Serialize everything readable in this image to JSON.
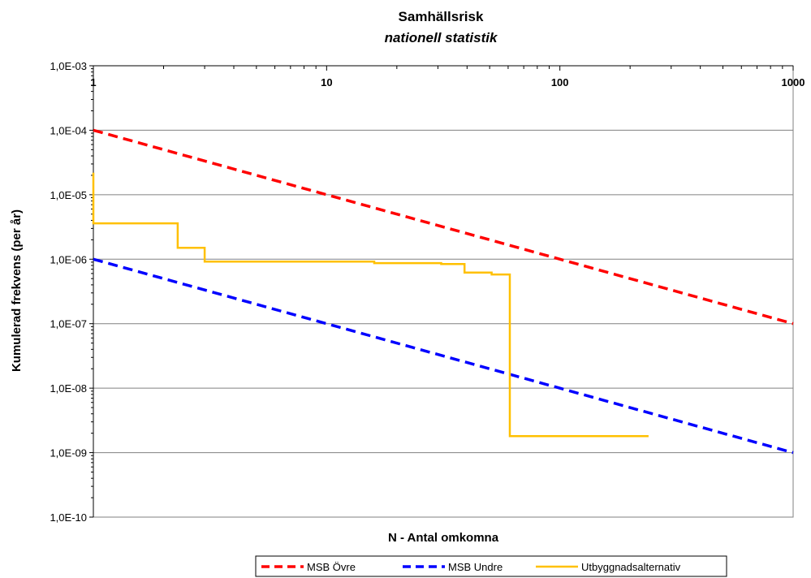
{
  "chart_data": {
    "type": "line",
    "title": "Samhällsrisk",
    "subtitle": "nationell statistik",
    "xlabel": "N - Antal omkomna",
    "ylabel": "Kumulerad frekvens (per år)",
    "xscale": "log",
    "yscale": "log",
    "xlim": [
      1,
      1000
    ],
    "ylim": [
      1e-10,
      0.001
    ],
    "x_ticks": [
      {
        "value": 1,
        "label": "1"
      },
      {
        "value": 10,
        "label": "10"
      },
      {
        "value": 100,
        "label": "100"
      },
      {
        "value": 1000,
        "label": "1000"
      }
    ],
    "y_ticks": [
      {
        "value": 0.001,
        "label": "1,0E-03"
      },
      {
        "value": 0.0001,
        "label": "1,0E-04"
      },
      {
        "value": 1e-05,
        "label": "1,0E-05"
      },
      {
        "value": 1e-06,
        "label": "1,0E-06"
      },
      {
        "value": 1e-07,
        "label": "1,0E-07"
      },
      {
        "value": 1e-08,
        "label": "1,0E-08"
      },
      {
        "value": 1e-09,
        "label": "1,0E-09"
      },
      {
        "value": 1e-10,
        "label": "1,0E-10"
      }
    ],
    "grid": "horizontal",
    "legend_position": "bottom",
    "series": [
      {
        "name": "MSB Övre",
        "color": "#ff0000",
        "style": "dashed",
        "x": [
          1,
          1000
        ],
        "y": [
          0.0001,
          1e-07
        ]
      },
      {
        "name": "MSB Undre",
        "color": "#0000ff",
        "style": "dashed",
        "x": [
          1,
          1000
        ],
        "y": [
          1e-06,
          1e-09
        ]
      },
      {
        "name": "Utbyggnadsalternativ",
        "color": "#ffc000",
        "style": "solid-step",
        "x": [
          1,
          1,
          2.3,
          2.3,
          3,
          3,
          16,
          16,
          31,
          31,
          39,
          39,
          51,
          51,
          61,
          61,
          240
        ],
        "y": [
          2.2e-05,
          3.6e-06,
          3.6e-06,
          1.5e-06,
          1.5e-06,
          9.2e-07,
          9.2e-07,
          8.7e-07,
          8.7e-07,
          8.4e-07,
          8.4e-07,
          6.2e-07,
          6.2e-07,
          5.8e-07,
          5.8e-07,
          1.8e-09,
          1.8e-09
        ]
      }
    ]
  }
}
